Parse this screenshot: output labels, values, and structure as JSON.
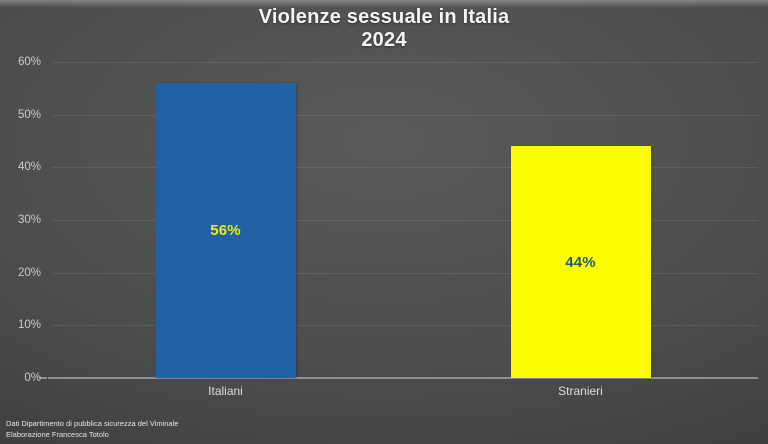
{
  "slide": {
    "title": "Violenze sessuale in Italia",
    "subtitle": "2024",
    "footer_line1": "Dati Dipartimento di pubblica sicurezza del Viminale",
    "footer_line2": "Elaborazione Francesca Totolo"
  },
  "colors": {
    "background_center": "#595a5b",
    "background_edge": "#343536",
    "title_text": "#f4f4f4",
    "axis_line": "#909090",
    "y_label_text": "#cbcbcb",
    "x_label_text": "#dedede",
    "bar_italiani": "#2161A5",
    "bar_stranieri": "#FCFC00",
    "value_label_on_blue": "#EDF200",
    "value_label_on_yellow": "#215F66"
  },
  "chart_data": {
    "type": "bar",
    "title": "Violenze sessuale in Italia",
    "subtitle": "2024",
    "categories": [
      "Italiani",
      "Stranieri"
    ],
    "values": [
      56,
      44
    ],
    "value_labels": [
      "56%",
      "44%"
    ],
    "bar_colors": [
      "#2161A5",
      "#FCFC00"
    ],
    "value_label_colors": [
      "#EDF200",
      "#215F66"
    ],
    "ylim": [
      0,
      60
    ],
    "yticks": [
      0,
      10,
      20,
      30,
      40,
      50,
      60
    ],
    "ytick_labels": [
      "0%",
      "10%",
      "20%",
      "30%",
      "40%",
      "50%",
      "60%"
    ],
    "grid": true,
    "legend": false,
    "xlabel": "",
    "ylabel": "",
    "source_line1": "Dati Dipartimento di pubblica sicurezza del Viminale",
    "source_line2": "Elaborazione Francesca Totolo"
  }
}
